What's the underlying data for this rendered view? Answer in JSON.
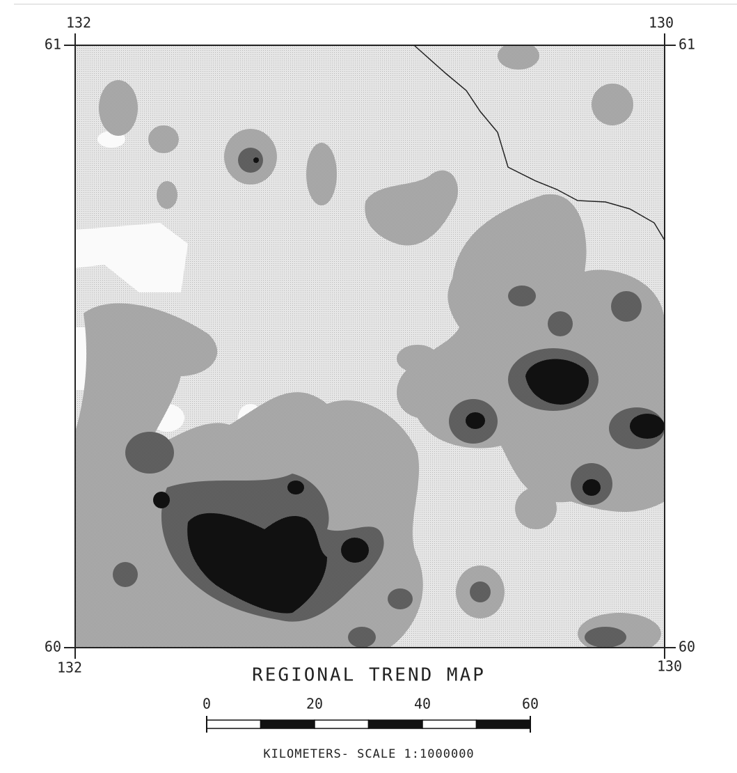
{
  "map": {
    "corners": {
      "top_left": {
        "lon": "132",
        "lat": "61"
      },
      "top_right": {
        "lon": "130",
        "lat": "61"
      },
      "bottom_left": {
        "lon": "132",
        "lat": "60"
      },
      "bottom_right": {
        "lon": "130",
        "lat": "60"
      }
    },
    "title": "REGIONAL TREND MAP",
    "scale": {
      "ticks": [
        "0",
        "20",
        "40",
        "60"
      ],
      "caption": "KILOMETERS- SCALE 1:1000000"
    }
  }
}
